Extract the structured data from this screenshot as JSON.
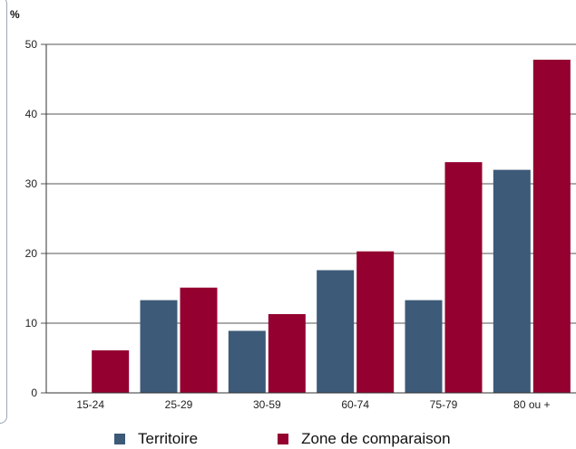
{
  "chart_data": {
    "type": "bar",
    "unit_label": "%",
    "categories": [
      "15-24",
      "25-29",
      "30-59",
      "60-74",
      "75-79",
      "80 ou +"
    ],
    "series": [
      {
        "name": "Territoire",
        "color": "#3d5a78",
        "values": [
          0,
          13.3,
          8.9,
          17.6,
          13.3,
          32.0
        ]
      },
      {
        "name": "Zone de comparaison",
        "color": "#940030",
        "values": [
          6.1,
          15.1,
          11.3,
          20.3,
          33.1,
          47.8
        ]
      }
    ],
    "yticks": [
      0,
      10,
      20,
      30,
      40,
      50
    ],
    "ylim": [
      0,
      50
    ],
    "grid": true,
    "legend_position": "bottom"
  }
}
